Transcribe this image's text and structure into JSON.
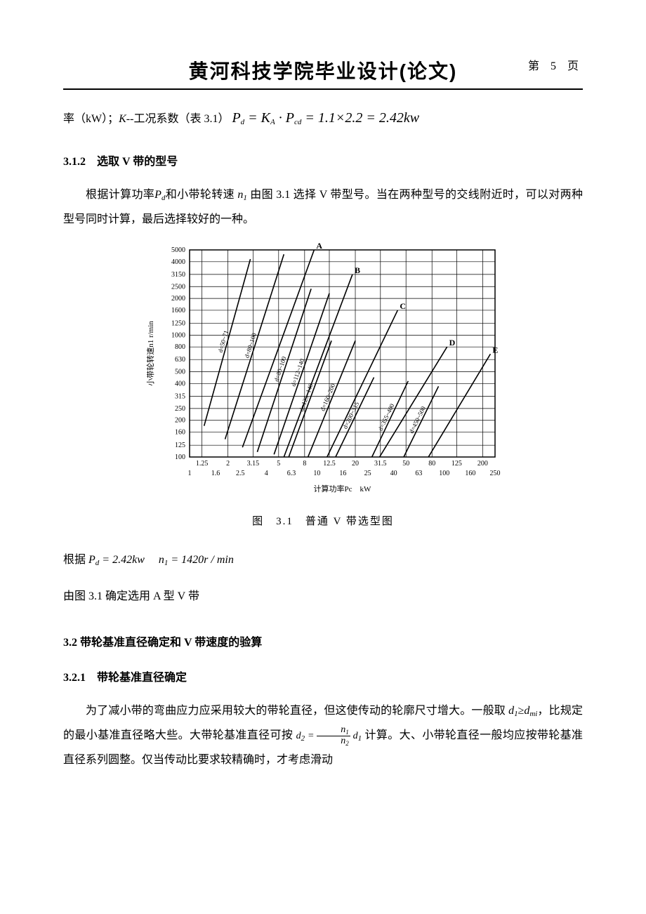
{
  "header": {
    "title": "黄河科技学院毕业设计(论文)",
    "page_prefix": "第",
    "page_num": "5",
    "page_suffix": "页"
  },
  "line1": {
    "a": "率（kW）；",
    "k": "K",
    "b": "--工况系数（表 3.1）",
    "formula": "P_d = K_A · P_{cd} = 1.1 × 2.2 = 2.42kw"
  },
  "s312": {
    "heading": "3.1.2 选取 V 带的型号",
    "p_a": "根据计算功率",
    "p_b": "和小带轮转速 ",
    "p_c": " 由图 3.1 选择 V 带型号。当在两种型号的交线附近时，可以对两种型号同时计算，最后选择较好的一种。"
  },
  "chart": {
    "type": "log-log-region-chart",
    "background_color": "#ffffff",
    "grid_color": "#000000",
    "xlabel": "计算功率Pc kW",
    "ylabel": "小带轮转速n1  r/min",
    "label_fontsize": 11,
    "tick_fontsize": 10,
    "x_ticks_top": [
      1.25,
      2,
      3.15,
      5,
      8,
      12.5,
      20,
      31.5,
      50,
      80,
      125,
      200
    ],
    "x_ticks_bottom": [
      1,
      1.6,
      2.5,
      4,
      6.3,
      10,
      16,
      25,
      40,
      63,
      100,
      160,
      250
    ],
    "y_ticks": [
      100,
      125,
      160,
      200,
      250,
      315,
      400,
      500,
      630,
      800,
      1000,
      1250,
      1600,
      2000,
      2500,
      3150,
      4000,
      5000
    ],
    "xlim": [
      1,
      250
    ],
    "ylim": [
      100,
      5000
    ],
    "region_lines": [
      {
        "label": "d=50~71",
        "p1": [
          1.3,
          180
        ],
        "p2": [
          3.0,
          4200
        ]
      },
      {
        "label": "d=80~100",
        "p1": [
          1.9,
          140
        ],
        "p2": [
          5.5,
          4600
        ]
      },
      {
        "label": "A",
        "p1": [
          2.6,
          120
        ],
        "p2": [
          9.5,
          5000
        ],
        "tag": true
      },
      {
        "label": "d=80~100",
        "p1": [
          3.4,
          110
        ],
        "p2": [
          9.0,
          2400
        ]
      },
      {
        "label": "d=112~140",
        "p1": [
          4.6,
          105
        ],
        "p2": [
          12.5,
          2200
        ]
      },
      {
        "label": "B",
        "p1": [
          5.5,
          100
        ],
        "p2": [
          19.0,
          3150
        ],
        "tag": true
      },
      {
        "label": "d=125~140",
        "p1": [
          6.0,
          100
        ],
        "p2": [
          13.0,
          900
        ]
      },
      {
        "label": "d=160~200",
        "p1": [
          8.5,
          100
        ],
        "p2": [
          20.0,
          900
        ]
      },
      {
        "label": "C",
        "p1": [
          12.0,
          100
        ],
        "p2": [
          43.0,
          1600
        ],
        "tag": true
      },
      {
        "label": "d=200~315",
        "p1": [
          14.0,
          100
        ],
        "p2": [
          28.0,
          450
        ]
      },
      {
        "label": "d=355~400",
        "p1": [
          27.0,
          100
        ],
        "p2": [
          52.0,
          420
        ]
      },
      {
        "label": "D",
        "p1": [
          31.0,
          100
        ],
        "p2": [
          105.0,
          800
        ],
        "tag": true
      },
      {
        "label": "d=450~500",
        "p1": [
          48.0,
          100
        ],
        "p2": [
          90.0,
          380
        ]
      },
      {
        "label": "E",
        "p1": [
          75.0,
          100
        ],
        "p2": [
          230.0,
          700
        ],
        "tag": true
      }
    ],
    "line_width": 1.6
  },
  "figcaption": "图 3.1 普通 V 带选型图",
  "after_fig": {
    "l1a": "根据",
    "l1b": "P_d = 2.42kw",
    "l1c": "n_1 = 1420r / min",
    "l2": "由图 3.1 确定选用 A 型 V 带"
  },
  "s32": {
    "heading": "3.2 带轮基准直径确定和 V 带速度的验算"
  },
  "s321": {
    "heading": "3.2.1 带轮基准直径确定",
    "p_a": "为了减小带的弯曲应力应采用较大的带轮直径，但这使传动的轮廓尺寸增大。一般取 ",
    "p_b": "，比规定的最小基准直径略大些。大带轮基准直径可按",
    "p_c": "计算。大、小带轮直径一般均应按带轮基准直径系列圆整。仅当传动比要求较精确时，才考虑滑动"
  }
}
